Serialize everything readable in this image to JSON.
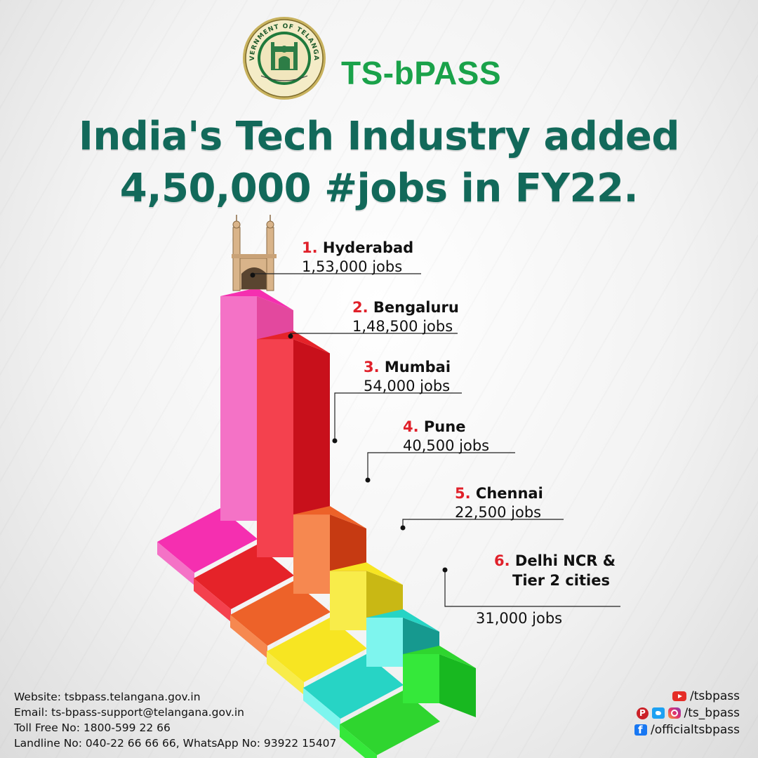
{
  "header": {
    "emblem_text": "GOVERNMENT OF TELANGANA",
    "brand": "TS-bPASS"
  },
  "title": {
    "line1": "India's Tech Industry added",
    "line2": "4,50,000 #jobs in FY22."
  },
  "chart_data": {
    "type": "bar",
    "categories": [
      "Hyderabad",
      "Bengaluru",
      "Mumbai",
      "Pune",
      "Chennai",
      "Delhi NCR & Tier 2 cities"
    ],
    "values": [
      153000,
      148500,
      54000,
      40500,
      22500,
      31000
    ],
    "ranks": [
      "1.",
      "2.",
      "3.",
      "4.",
      "5.",
      "6."
    ],
    "labels": [
      {
        "rank": "1.",
        "city": "Hyderabad",
        "city2": "",
        "jobs": "1,53,000 jobs"
      },
      {
        "rank": "2.",
        "city": "Bengaluru",
        "city2": "",
        "jobs": "1,48,500 jobs"
      },
      {
        "rank": "3.",
        "city": "Mumbai",
        "city2": "",
        "jobs": "54,000 jobs"
      },
      {
        "rank": "4.",
        "city": "Pune",
        "city2": "",
        "jobs": "40,500 jobs"
      },
      {
        "rank": "5.",
        "city": "Chennai",
        "city2": "",
        "jobs": "22,500 jobs"
      },
      {
        "rank": "6.",
        "city": "Delhi NCR &",
        "city2": "Tier 2 cities",
        "jobs": "31,000 jobs"
      }
    ],
    "colors": [
      {
        "front": "#f472c6",
        "side": "#e3489e",
        "top": "#f52fb0"
      },
      {
        "front": "#f4414e",
        "side": "#c8101b",
        "top": "#e52329"
      },
      {
        "front": "#f68850",
        "side": "#c63a12",
        "top": "#ed6229"
      },
      {
        "front": "#f8ec4a",
        "side": "#c9b814",
        "top": "#f7e522"
      },
      {
        "front": "#7ef5ee",
        "side": "#16998f",
        "top": "#27d4c5"
      },
      {
        "front": "#35e83a",
        "side": "#18b820",
        "top": "#2fd52f"
      }
    ],
    "rank_color": "#e0202a"
  },
  "footer": {
    "website": "Website: tsbpass.telangana.gov.in",
    "email": "Email: ts-bpass-support@telangana.gov.in",
    "tollfree": "Toll Free No: 1800-599 22 66",
    "landline": "Landline No: 040-22 66 66 66, WhatsApp No: 93922 15407",
    "youtube": "/tsbpass",
    "twitter_instagram": "/ts_bpass",
    "facebook": "/officialtsbpass"
  }
}
